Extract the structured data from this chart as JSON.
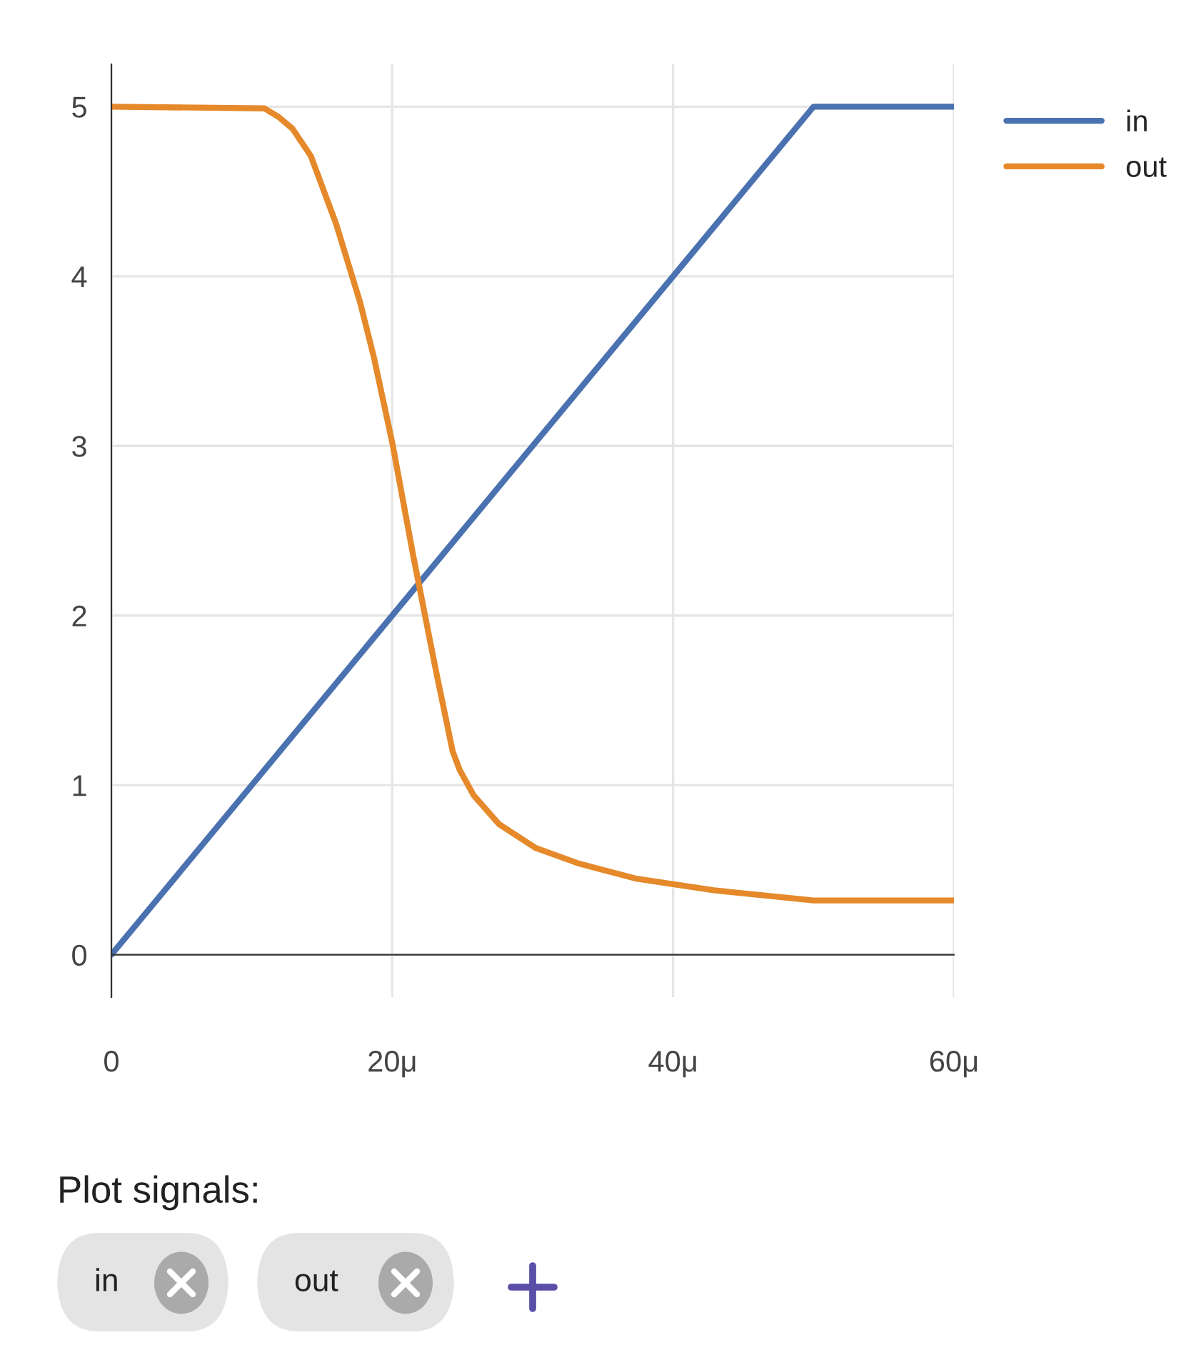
{
  "chart_data": {
    "type": "line",
    "x": [
      0,
      10.9,
      11.9,
      12.9,
      14.2,
      16.0,
      17.7,
      18.7,
      20.0,
      21.5,
      23.1,
      24.3,
      24.8,
      25.8,
      27.6,
      30.2,
      33.2,
      37.3,
      42.9,
      50.0,
      60
    ],
    "series": [
      {
        "name": "in",
        "color": "#4a72b0",
        "x": [
          0,
          50,
          60
        ],
        "values": [
          0,
          5,
          5
        ]
      },
      {
        "name": "out",
        "color": "#e5892a",
        "values": [
          5.0,
          4.99,
          4.94,
          4.87,
          4.71,
          4.31,
          3.85,
          3.52,
          3.02,
          2.35,
          1.68,
          1.2,
          1.09,
          0.94,
          0.77,
          0.63,
          0.54,
          0.45,
          0.38,
          0.32,
          0.32
        ]
      }
    ],
    "xlim": [
      0,
      60
    ],
    "xticks": [
      0,
      {
        "value": 20,
        "label": "20μ"
      },
      {
        "value": 40,
        "label": "40μ"
      },
      {
        "value": 60,
        "label": "60μ"
      }
    ],
    "ylim": [
      -0.25,
      5.25
    ],
    "yticks": [
      0,
      1,
      2,
      3,
      4,
      5
    ],
    "grid": true,
    "legend": "top right",
    "marker": "none",
    "line_style": "solid",
    "annotations": [
      "Plot signals:",
      "in",
      "out"
    ]
  }
}
